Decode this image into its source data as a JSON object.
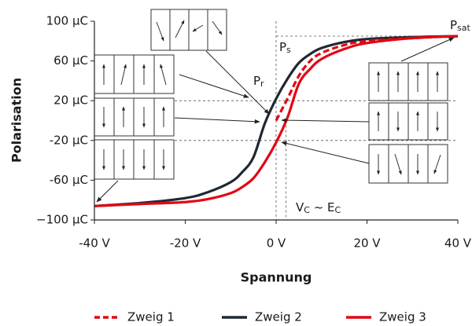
{
  "chart_data": {
    "type": "line",
    "x_label": "Spannung",
    "y_label": "Polarisation",
    "x": [
      -40,
      -30,
      -20,
      -15,
      -10,
      -7.5,
      -5,
      -2.5,
      0,
      2.5,
      5,
      7.5,
      10,
      15,
      20,
      30,
      40
    ],
    "series": [
      {
        "name": "Zweig 1",
        "color": "#e30613",
        "dashed": true,
        "values": [
          null,
          null,
          null,
          null,
          null,
          null,
          null,
          null,
          0,
          22,
          45,
          60,
          68,
          76,
          80,
          83,
          85
        ]
      },
      {
        "name": "Zweig 2",
        "color": "#1f2933",
        "dashed": false,
        "values": [
          -86,
          -83,
          -78,
          -72,
          -62,
          -52,
          -37,
          -3,
          22,
          42,
          58,
          67,
          73,
          79,
          82,
          84,
          85
        ]
      },
      {
        "name": "Zweig 3",
        "color": "#e30613",
        "dashed": false,
        "values": [
          -86,
          -84,
          -82,
          -79,
          -73,
          -67,
          -58,
          -42,
          -22,
          3,
          37,
          52,
          62,
          72,
          78,
          83,
          85
        ]
      }
    ],
    "xlim": [
      -40,
      40
    ],
    "xticks": [
      {
        "value": -40,
        "label": "-40 V"
      },
      {
        "value": -20,
        "label": "-20 V"
      },
      {
        "value": 0,
        "label": "0 V"
      },
      {
        "value": 20,
        "label": "20 V"
      },
      {
        "value": 40,
        "label": "40 V"
      }
    ],
    "ylim": [
      -100,
      100
    ],
    "yticks": [
      {
        "value": 100,
        "label": "100 µC"
      },
      {
        "value": 60,
        "label": "60 µC"
      },
      {
        "value": 20,
        "label": "20 µC"
      },
      {
        "value": -20,
        "label": "-20 µC"
      },
      {
        "value": -60,
        "label": "-60 µC"
      },
      {
        "value": -100,
        "label": "−100 µC"
      }
    ],
    "annotations": {
      "pr": {
        "text": "P",
        "sub": "r"
      },
      "ps": {
        "text": "P",
        "sub": "s"
      },
      "psat": {
        "text": "P",
        "sub": "sat"
      },
      "vc": {
        "text": "V",
        "sub": "C",
        "mid": " ~ E",
        "sub2": "C"
      }
    }
  }
}
